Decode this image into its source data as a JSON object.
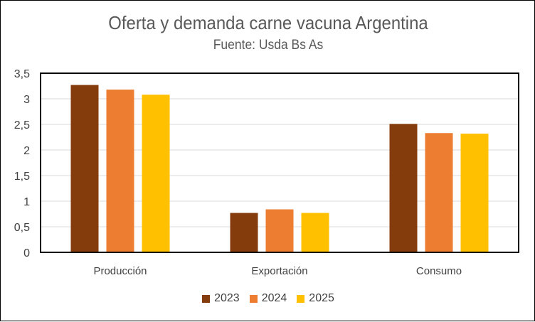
{
  "chart_data": {
    "type": "bar",
    "title": "Oferta y demanda carne vacuna Argentina",
    "subtitle": "Fuente: Usda Bs As",
    "categories": [
      "Producción",
      "Exportación",
      "Consumo"
    ],
    "series": [
      {
        "name": "2023",
        "color": "#843C0C",
        "values": [
          3.27,
          0.77,
          2.51
        ]
      },
      {
        "name": "2024",
        "color": "#ED7D31",
        "values": [
          3.18,
          0.84,
          2.33
        ]
      },
      {
        "name": "2025",
        "color": "#FFC000",
        "values": [
          3.08,
          0.77,
          2.32
        ]
      }
    ],
    "yticks": [
      "0",
      "0,5",
      "1",
      "1,5",
      "2",
      "2,5",
      "3",
      "3,5"
    ],
    "ylim": [
      0,
      3.5
    ],
    "grid": true,
    "legend_position": "bottom"
  }
}
